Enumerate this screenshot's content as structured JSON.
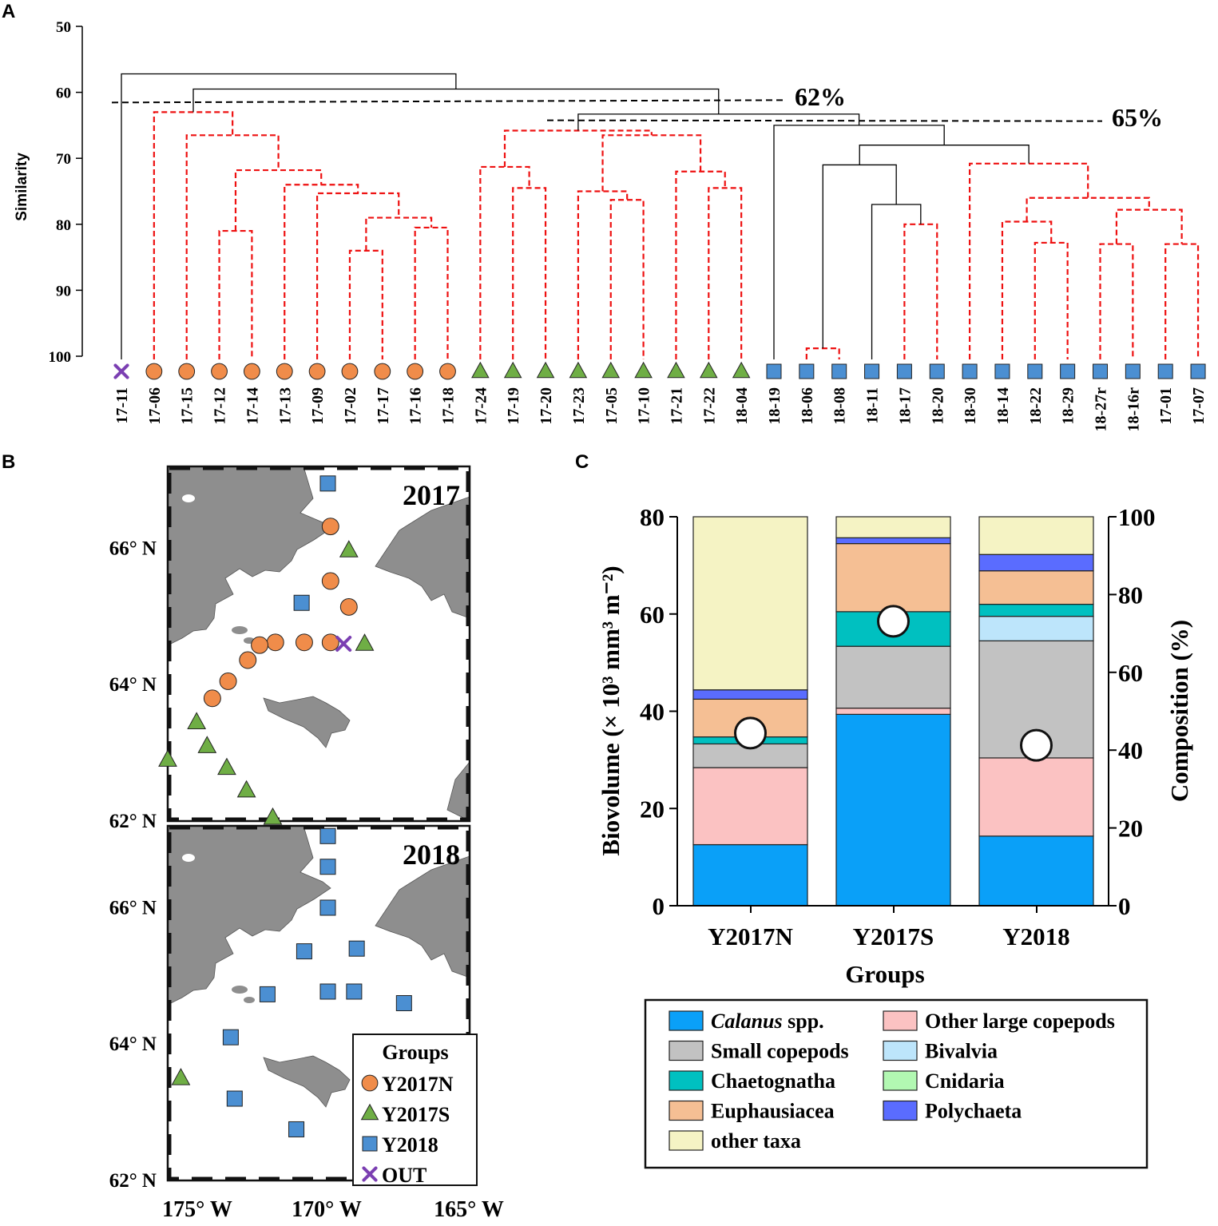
{
  "panels": {
    "a": "A",
    "b": "B",
    "c": "C"
  },
  "colors": {
    "y2017n": "#f08c4a",
    "y2017s": "#6fae45",
    "y2018": "#4b8fd2",
    "out": "#7b3fb2",
    "red_dash": "#ee1111",
    "land": "#8e8e8e"
  },
  "chart_data": [
    {
      "type": "dendrogram",
      "ylabel": "Similarity",
      "ylim": [
        50,
        100
      ],
      "yticks": [
        "50",
        "60",
        "70",
        "80",
        "90",
        "100"
      ],
      "cutoffs": [
        {
          "value": 61.3,
          "label": "62%"
        },
        {
          "value": 64,
          "label": "65%"
        }
      ],
      "leaves": [
        {
          "label": "17-11",
          "group": "out"
        },
        {
          "label": "17-06",
          "group": "y2017n"
        },
        {
          "label": "17-15",
          "group": "y2017n"
        },
        {
          "label": "17-12",
          "group": "y2017n"
        },
        {
          "label": "17-14",
          "group": "y2017n"
        },
        {
          "label": "17-13",
          "group": "y2017n"
        },
        {
          "label": "17-09",
          "group": "y2017n"
        },
        {
          "label": "17-02",
          "group": "y2017n"
        },
        {
          "label": "17-17",
          "group": "y2017n"
        },
        {
          "label": "17-16",
          "group": "y2017n"
        },
        {
          "label": "17-18",
          "group": "y2017n"
        },
        {
          "label": "17-24",
          "group": "y2017s"
        },
        {
          "label": "17-19",
          "group": "y2017s"
        },
        {
          "label": "17-20",
          "group": "y2017s"
        },
        {
          "label": "17-23",
          "group": "y2017s"
        },
        {
          "label": "17-05",
          "group": "y2017s"
        },
        {
          "label": "17-10",
          "group": "y2017s"
        },
        {
          "label": "17-21",
          "group": "y2017s"
        },
        {
          "label": "17-22",
          "group": "y2017s"
        },
        {
          "label": "18-04",
          "group": "y2017s"
        },
        {
          "label": "18-19",
          "group": "y2018"
        },
        {
          "label": "18-06",
          "group": "y2018"
        },
        {
          "label": "18-08",
          "group": "y2018"
        },
        {
          "label": "18-11",
          "group": "y2018"
        },
        {
          "label": "18-17",
          "group": "y2018"
        },
        {
          "label": "18-20",
          "group": "y2018"
        },
        {
          "label": "18-30",
          "group": "y2018"
        },
        {
          "label": "18-14",
          "group": "y2018"
        },
        {
          "label": "18-22",
          "group": "y2018"
        },
        {
          "label": "18-29",
          "group": "y2018"
        },
        {
          "label": "18-27r",
          "group": "y2018"
        },
        {
          "label": "18-16r",
          "group": "y2018"
        },
        {
          "label": "17-01",
          "group": "y2018"
        },
        {
          "label": "17-07",
          "group": "y2018"
        }
      ],
      "merges": [
        {
          "left": "L7",
          "right": "L8",
          "similarity": 84.0,
          "dashed": true
        },
        {
          "left": "L9",
          "right": "L10",
          "similarity": 80.5,
          "dashed": true
        },
        {
          "left": "M0",
          "right": "M1",
          "similarity": 79.0,
          "dashed": true
        },
        {
          "left": "L6",
          "right": "M2",
          "similarity": 75.3,
          "dashed": true
        },
        {
          "left": "L5",
          "right": "M3",
          "similarity": 74.0,
          "dashed": true
        },
        {
          "left": "L3",
          "right": "L4",
          "similarity": 81.0,
          "dashed": true
        },
        {
          "left": "M5",
          "right": "M4",
          "similarity": 71.8,
          "dashed": true
        },
        {
          "left": "L2",
          "right": "M6",
          "similarity": 66.5,
          "dashed": true
        },
        {
          "left": "L1",
          "right": "M7",
          "similarity": 63.0,
          "dashed": true
        },
        {
          "left": "L12",
          "right": "L13",
          "similarity": 74.5,
          "dashed": true
        },
        {
          "left": "L11",
          "right": "M9",
          "similarity": 71.3,
          "dashed": true
        },
        {
          "left": "L15",
          "right": "L16",
          "similarity": 76.3,
          "dashed": true
        },
        {
          "left": "L14",
          "right": "M11",
          "similarity": 75.0,
          "dashed": true
        },
        {
          "left": "L18",
          "right": "L19",
          "similarity": 74.5,
          "dashed": true
        },
        {
          "left": "L17",
          "right": "M13",
          "similarity": 72.0,
          "dashed": true
        },
        {
          "left": "M12",
          "right": "M14",
          "similarity": 66.5,
          "dashed": true
        },
        {
          "left": "M10",
          "right": "M15",
          "similarity": 65.8,
          "dashed": true
        },
        {
          "left": "L21",
          "right": "L22",
          "similarity": 98.8,
          "dashed": true
        },
        {
          "left": "L24",
          "right": "L25",
          "similarity": 80.0,
          "dashed": true
        },
        {
          "left": "L23",
          "right": "M18",
          "similarity": 77.0,
          "dashed": false
        },
        {
          "left": "M17",
          "right": "M19",
          "similarity": 71.0,
          "dashed": false
        },
        {
          "left": "L28",
          "right": "L29",
          "similarity": 82.8,
          "dashed": true
        },
        {
          "left": "L27",
          "right": "M21",
          "similarity": 79.6,
          "dashed": true
        },
        {
          "left": "L30",
          "right": "L31",
          "similarity": 83.0,
          "dashed": true
        },
        {
          "left": "L32",
          "right": "L33",
          "similarity": 83.0,
          "dashed": true
        },
        {
          "left": "M23",
          "right": "M24",
          "similarity": 77.8,
          "dashed": true
        },
        {
          "left": "M22",
          "right": "M25",
          "similarity": 76.0,
          "dashed": true
        },
        {
          "left": "L26",
          "right": "M26",
          "similarity": 70.8,
          "dashed": true
        },
        {
          "left": "M20",
          "right": "M27",
          "similarity": 68.0,
          "dashed": false
        },
        {
          "left": "L20",
          "right": "M28",
          "similarity": 65.0,
          "dashed": false
        },
        {
          "left": "M16",
          "right": "M29",
          "similarity": 63.3,
          "dashed": false
        },
        {
          "left": "M8",
          "right": "M30",
          "similarity": 59.5,
          "dashed": false
        },
        {
          "left": "L0",
          "right": "M31",
          "similarity": 57.2,
          "dashed": false
        }
      ]
    },
    {
      "type": "map",
      "years": [
        "2017",
        "2018"
      ],
      "lat_labels": [
        "66° N",
        "64° N",
        "62° N"
      ],
      "lon_labels": [
        "175° W",
        "170° W",
        "165° W"
      ],
      "extent": {
        "lon_min": -176,
        "lon_max": -164.5,
        "lat_min": 62,
        "lat_max": 67.2
      },
      "stations_2017": [
        {
          "lon": -169.9,
          "lat": 66.95,
          "group": "y2018"
        },
        {
          "lon": -169.8,
          "lat": 66.32,
          "group": "y2017n"
        },
        {
          "lon": -169.1,
          "lat": 65.97,
          "group": "y2017s"
        },
        {
          "lon": -169.8,
          "lat": 65.52,
          "group": "y2017n"
        },
        {
          "lon": -170.9,
          "lat": 65.2,
          "group": "y2018"
        },
        {
          "lon": -169.1,
          "lat": 65.14,
          "group": "y2017n"
        },
        {
          "lon": -169.8,
          "lat": 64.62,
          "group": "y2017n"
        },
        {
          "lon": -170.8,
          "lat": 64.62,
          "group": "y2017n"
        },
        {
          "lon": -171.9,
          "lat": 64.62,
          "group": "y2017n"
        },
        {
          "lon": -172.5,
          "lat": 64.58,
          "group": "y2017n"
        },
        {
          "lon": -172.95,
          "lat": 64.36,
          "group": "y2017n"
        },
        {
          "lon": -173.7,
          "lat": 64.05,
          "group": "y2017n"
        },
        {
          "lon": -174.3,
          "lat": 63.8,
          "group": "y2017n"
        },
        {
          "lon": -169.3,
          "lat": 64.6,
          "group": "out"
        },
        {
          "lon": -168.5,
          "lat": 64.6,
          "group": "y2017s"
        },
        {
          "lon": -174.9,
          "lat": 63.45,
          "group": "y2017s"
        },
        {
          "lon": -174.5,
          "lat": 63.1,
          "group": "y2017s"
        },
        {
          "lon": -173.75,
          "lat": 62.78,
          "group": "y2017s"
        },
        {
          "lon": -173.0,
          "lat": 62.45,
          "group": "y2017s"
        },
        {
          "lon": -172.0,
          "lat": 62.05,
          "group": "y2017s"
        },
        {
          "lon": -176.0,
          "lat": 62.9,
          "group": "y2017s"
        }
      ],
      "stations_2018": [
        {
          "lon": -169.9,
          "lat": 67.05,
          "group": "y2018"
        },
        {
          "lon": -169.9,
          "lat": 66.6,
          "group": "y2018"
        },
        {
          "lon": -169.9,
          "lat": 66.0,
          "group": "y2018"
        },
        {
          "lon": -170.8,
          "lat": 65.36,
          "group": "y2018"
        },
        {
          "lon": -168.8,
          "lat": 65.4,
          "group": "y2018"
        },
        {
          "lon": -169.9,
          "lat": 64.77,
          "group": "y2018"
        },
        {
          "lon": -168.9,
          "lat": 64.77,
          "group": "y2018"
        },
        {
          "lon": -172.2,
          "lat": 64.73,
          "group": "y2018"
        },
        {
          "lon": -167.0,
          "lat": 64.6,
          "group": "y2018"
        },
        {
          "lon": -173.6,
          "lat": 64.1,
          "group": "y2018"
        },
        {
          "lon": -173.45,
          "lat": 63.2,
          "group": "y2018"
        },
        {
          "lon": -171.1,
          "lat": 62.75,
          "group": "y2018"
        },
        {
          "lon": -175.5,
          "lat": 63.5,
          "group": "y2017s"
        }
      ],
      "legend": {
        "title": "Groups",
        "items": [
          {
            "label": "Y2017N",
            "group": "y2017n"
          },
          {
            "label": "Y2017S",
            "group": "y2017s"
          },
          {
            "label": "Y2018",
            "group": "y2018"
          },
          {
            "label": "OUT",
            "group": "out"
          }
        ]
      }
    },
    {
      "type": "stacked-bar",
      "xlabel": "Groups",
      "ylabel_left": "Biovolume (× 10³ mm³ m⁻²)",
      "ylabel_right": "Composition (%)",
      "ylim_left": [
        0,
        80
      ],
      "ylim_right": [
        0,
        100
      ],
      "yticks_left": [
        "0",
        "20",
        "40",
        "60",
        "80"
      ],
      "yticks_right": [
        "0",
        "20",
        "40",
        "60",
        "80",
        "100"
      ],
      "categories": [
        "Y2017N",
        "Y2017S",
        "Y2018"
      ],
      "biovolume": [
        35.5,
        58.5,
        33.0
      ],
      "series": [
        {
          "name": "Calanus spp.",
          "color": "#0aa0f8",
          "values": [
            15.7,
            49.2,
            17.9
          ]
        },
        {
          "name": "Other large copepods",
          "color": "#fbc2c2",
          "values": [
            19.8,
            1.6,
            20.1
          ]
        },
        {
          "name": "Small copepods",
          "color": "#c2c2c2",
          "values": [
            6.1,
            15.9,
            30.1
          ]
        },
        {
          "name": "Bivalvia",
          "color": "#bde5fb",
          "values": [
            0.0,
            0.0,
            6.3
          ]
        },
        {
          "name": "Chaetognatha",
          "color": "#00c0c0",
          "values": [
            1.8,
            8.9,
            3.1
          ]
        },
        {
          "name": "Cnidaria",
          "color": "#b2f8b2",
          "values": [
            0.0,
            0.0,
            0.0
          ]
        },
        {
          "name": "Euphausiacea",
          "color": "#f5bf94",
          "values": [
            9.7,
            17.5,
            8.6
          ]
        },
        {
          "name": "Polychaeta",
          "color": "#5a6cff",
          "values": [
            2.4,
            1.5,
            4.2
          ]
        },
        {
          "name": "other taxa",
          "color": "#f5f3c4",
          "values": [
            44.5,
            5.4,
            9.7
          ]
        }
      ],
      "legend": [
        {
          "name": "Calanus",
          "suffix": " spp.",
          "color": "#0aa0f8"
        },
        {
          "name": "Other large copepods",
          "suffix": "",
          "color": "#fbc2c2"
        },
        {
          "name": "Small copepods",
          "suffix": "",
          "color": "#c2c2c2"
        },
        {
          "name": "Bivalvia",
          "suffix": "",
          "color": "#bde5fb"
        },
        {
          "name": "Chaetognatha",
          "suffix": "",
          "color": "#00c0c0"
        },
        {
          "name": "Cnidaria",
          "suffix": "",
          "color": "#b2f8b2"
        },
        {
          "name": "Euphausiacea",
          "suffix": "",
          "color": "#f5bf94"
        },
        {
          "name": "Polychaeta",
          "suffix": "",
          "color": "#5a6cff"
        },
        {
          "name": "other taxa",
          "suffix": "",
          "color": "#f5f3c4"
        }
      ]
    }
  ]
}
